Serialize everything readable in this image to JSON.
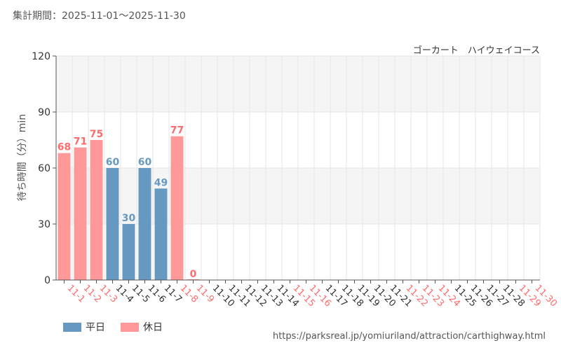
{
  "period_label": "集計期間：2025-11-01～2025-11-30",
  "colors": {
    "weekday": "#6699c2",
    "holiday": "#ff9898",
    "holiday_label": "#ff6b6b",
    "grid": "#e6e6e6",
    "band": "#f5f5f5"
  },
  "legend": {
    "weekday": "平日",
    "holiday": "休日"
  },
  "source_url": "https://parksreal.jp/yomiuriland/attraction/carthighway.html",
  "chart_data": {
    "type": "bar",
    "title": "ゴーカート　ハイウェイコース",
    "ylabel": "待ち時間（分）min",
    "xlabel": "",
    "ylim": [
      0,
      120
    ],
    "yticks": [
      0,
      30,
      60,
      90,
      120
    ],
    "grid": true,
    "legend_position": "bottom-left",
    "categories": [
      "11-1",
      "11-2",
      "11-3",
      "11-4",
      "11-5",
      "11-6",
      "11-7",
      "11-8",
      "11-9",
      "11-10",
      "11-11",
      "11-12",
      "11-13",
      "11-14",
      "11-15",
      "11-16",
      "11-17",
      "11-18",
      "11-19",
      "11-20",
      "11-21",
      "11-22",
      "11-23",
      "11-24",
      "11-25",
      "11-26",
      "11-27",
      "11-28",
      "11-29",
      "11-30"
    ],
    "values": [
      68,
      71,
      75,
      60,
      30,
      60,
      49,
      77,
      0,
      null,
      null,
      null,
      null,
      null,
      null,
      null,
      null,
      null,
      null,
      null,
      null,
      null,
      null,
      null,
      null,
      null,
      null,
      null,
      null,
      null
    ],
    "day_type": [
      "holiday",
      "holiday",
      "holiday",
      "weekday",
      "weekday",
      "weekday",
      "weekday",
      "holiday",
      "holiday",
      "weekday",
      "weekday",
      "weekday",
      "weekday",
      "weekday",
      "holiday",
      "holiday",
      "weekday",
      "weekday",
      "weekday",
      "weekday",
      "weekday",
      "holiday",
      "holiday",
      "holiday",
      "weekday",
      "weekday",
      "weekday",
      "weekday",
      "holiday",
      "holiday"
    ]
  }
}
